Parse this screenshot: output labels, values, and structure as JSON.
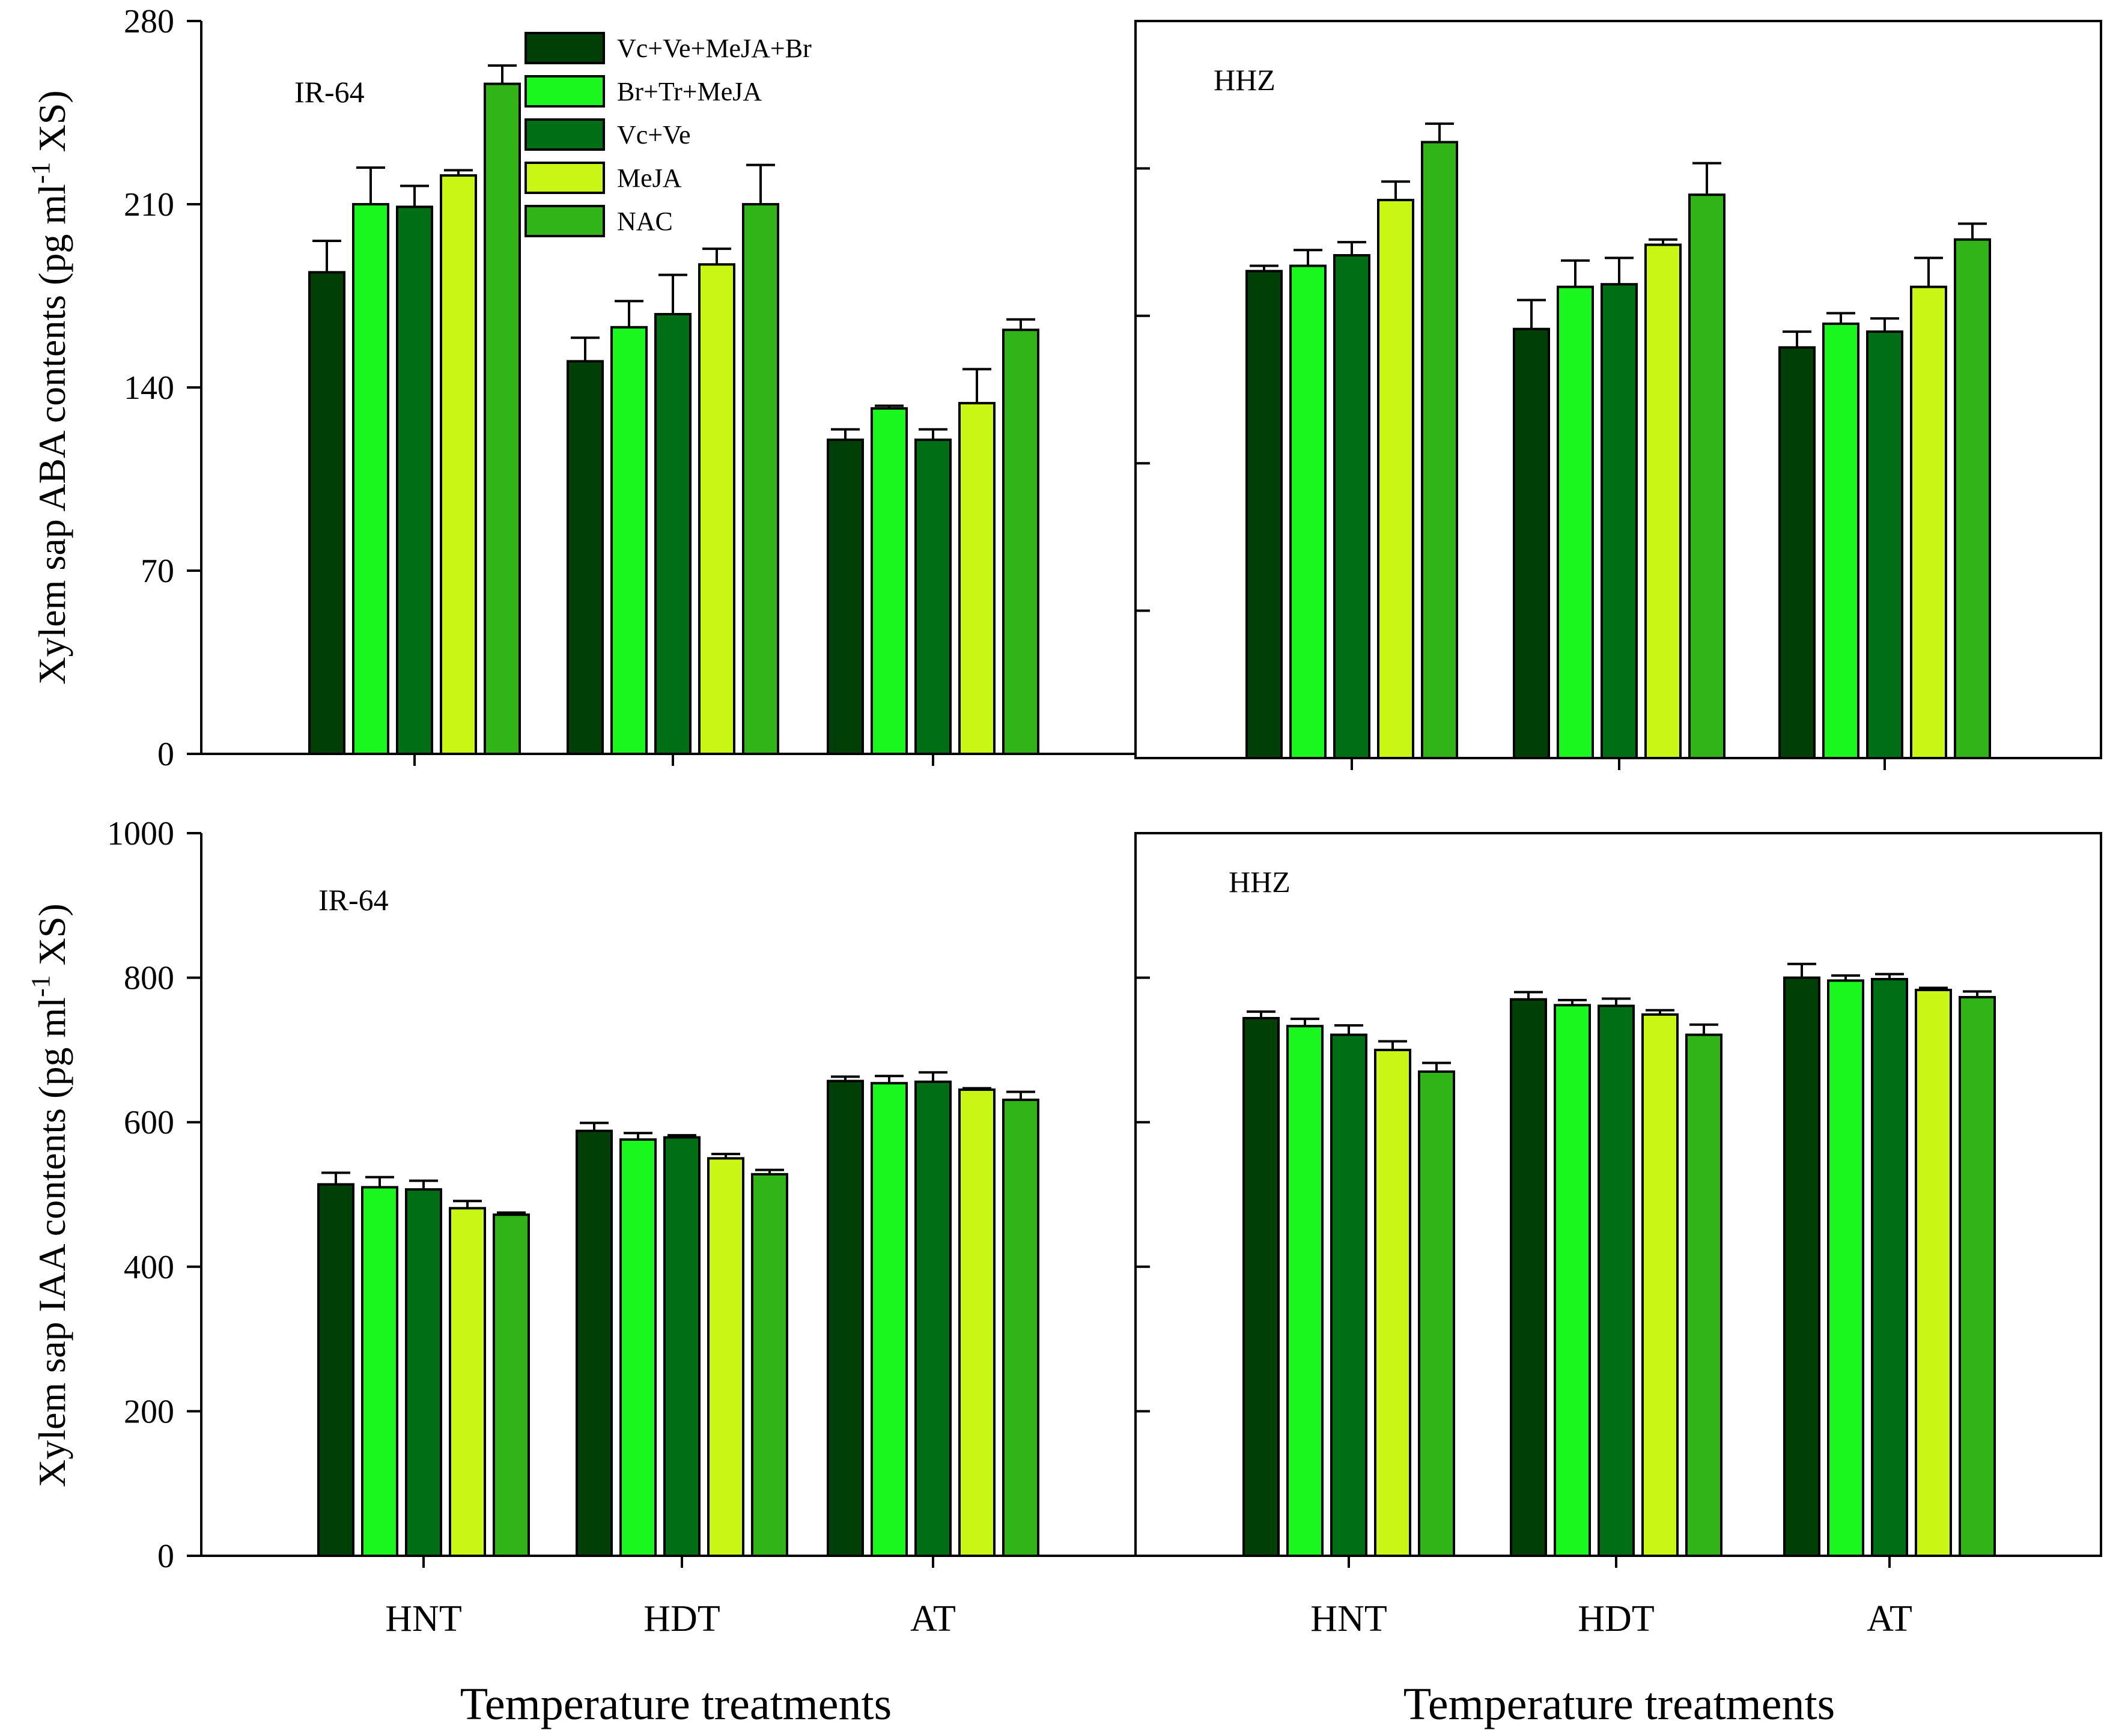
{
  "figure": {
    "y_axis_labels": {
      "top": {
        "main": "Xylem sap ABA contents (pg ml",
        "sup": "-1",
        "tail": " XS)"
      },
      "bottom": {
        "main": "Xylem sap IAA contents (pg ml",
        "sup": "-1",
        "tail": " XS)"
      }
    },
    "x_axis_label": "Temperature treatments"
  },
  "colors": {
    "Vc+Ve+MeJA+Br": "#003f05",
    "Br+Tr+MeJA": "#19f71f",
    "Vc+Ve": "#006e14",
    "MeJA": "#c8f716",
    "NAC": "#30b417"
  },
  "chart_data": [
    {
      "id": "aba-ir64",
      "type": "bar",
      "panel_label": "IR-64",
      "categories": [
        "HNT",
        "HDT",
        "AT"
      ],
      "series_names": [
        "Vc+Ve+MeJA+Br",
        "Br+Tr+MeJA",
        "Vc+Ve",
        "MeJA",
        "NAC"
      ],
      "values": [
        [
          184,
          210,
          209,
          221,
          256
        ],
        [
          150,
          163,
          168,
          187,
          210
        ],
        [
          120,
          132,
          120,
          134,
          162
        ]
      ],
      "errors": [
        [
          12,
          14,
          8,
          2,
          7
        ],
        [
          9,
          10,
          15,
          6,
          15
        ],
        [
          4,
          1,
          4,
          13,
          4
        ]
      ],
      "ylim": [
        0,
        280
      ],
      "yticks": [
        0,
        70,
        140,
        210,
        280
      ],
      "legend": true,
      "legend_position": "top-right of panel"
    },
    {
      "id": "aba-hhz",
      "type": "bar",
      "panel_label": "HHZ",
      "categories": [
        "HNT",
        "HDT",
        "AT"
      ],
      "series_names": [
        "Vc+Ve+MeJA+Br",
        "Br+Tr+MeJA",
        "Vc+Ve",
        "MeJA",
        "NAC"
      ],
      "values": [
        [
          185,
          187,
          191,
          212,
          234
        ],
        [
          163,
          179,
          180,
          195,
          214
        ],
        [
          156,
          165,
          162,
          179,
          197
        ]
      ],
      "errors": [
        [
          2,
          6,
          5,
          7,
          7
        ],
        [
          11,
          10,
          10,
          2,
          12
        ],
        [
          6,
          4,
          5,
          11,
          6
        ]
      ],
      "ylim": [
        0,
        280
      ],
      "yticks": [
        0,
        56,
        112,
        168,
        224,
        280
      ],
      "legend": false
    },
    {
      "id": "iaa-ir64",
      "type": "bar",
      "panel_label": "IR-64",
      "categories": [
        "HNT",
        "HDT",
        "AT"
      ],
      "series_names": [
        "Vc+Ve+MeJA+Br",
        "Br+Tr+MeJA",
        "Vc+Ve",
        "MeJA",
        "NAC"
      ],
      "values": [
        [
          514,
          510,
          507,
          481,
          472
        ],
        [
          588,
          576,
          579,
          550,
          528
        ],
        [
          657,
          654,
          656,
          645,
          631
        ]
      ],
      "errors": [
        [
          16,
          14,
          12,
          10,
          3
        ],
        [
          11,
          9,
          3,
          6,
          6
        ],
        [
          6,
          10,
          13,
          2,
          11
        ]
      ],
      "ylim": [
        0,
        1000
      ],
      "yticks": [
        0,
        200,
        400,
        600,
        800,
        1000
      ],
      "legend": false
    },
    {
      "id": "iaa-hhz",
      "type": "bar",
      "panel_label": "HHZ",
      "categories": [
        "HNT",
        "HDT",
        "AT"
      ],
      "series_names": [
        "Vc+Ve+MeJA+Br",
        "Br+Tr+MeJA",
        "Vc+Ve",
        "MeJA",
        "NAC"
      ],
      "values": [
        [
          744,
          733,
          721,
          700,
          670
        ],
        [
          770,
          762,
          761,
          749,
          721
        ],
        [
          800,
          796,
          798,
          783,
          773
        ]
      ],
      "errors": [
        [
          9,
          10,
          13,
          12,
          12
        ],
        [
          10,
          7,
          10,
          6,
          14
        ],
        [
          19,
          7,
          7,
          3,
          8
        ]
      ],
      "ylim": [
        0,
        1000
      ],
      "yticks": [
        0,
        200,
        400,
        600,
        800,
        1000
      ],
      "legend": false
    }
  ]
}
